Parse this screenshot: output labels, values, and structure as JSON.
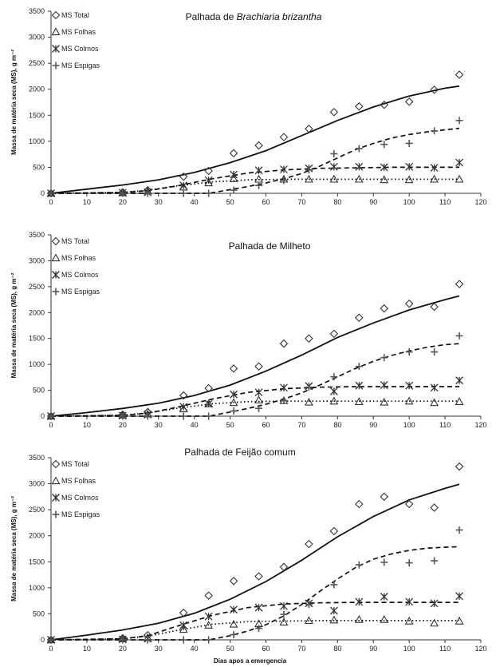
{
  "chart_data": [
    {
      "type": "scatter",
      "title_prefix": "Palhada de ",
      "title_emph": "Brachiaria brizantha",
      "ylabel": "Massa de matéria seca (MS), g m⁻²",
      "xlabel": "",
      "xlim": [
        0,
        120
      ],
      "ylim": [
        0,
        3500
      ],
      "xticks": [
        0,
        10,
        20,
        30,
        40,
        50,
        60,
        70,
        80,
        90,
        100,
        110,
        120
      ],
      "yticks": [
        0,
        500,
        1000,
        1500,
        2000,
        2500,
        3000,
        3500
      ],
      "legend": [
        "MS Total",
        "MS Folhas",
        "MS Colmos",
        "MS Espigas"
      ],
      "series": [
        {
          "name": "MS Total",
          "marker": "diamond",
          "x": [
            0,
            20,
            27,
            37,
            44,
            51,
            58,
            65,
            72,
            79,
            86,
            93,
            100,
            107,
            114
          ],
          "y": [
            0,
            20,
            60,
            320,
            430,
            770,
            920,
            1080,
            1240,
            1560,
            1670,
            1700,
            1760,
            1990,
            2280
          ]
        },
        {
          "name": "MS Folhas",
          "marker": "triangle",
          "x": [
            0,
            20,
            27,
            37,
            44,
            51,
            58,
            65,
            72,
            79,
            86,
            93,
            100,
            107,
            114
          ],
          "y": [
            0,
            10,
            40,
            120,
            200,
            280,
            270,
            270,
            270,
            270,
            270,
            260,
            260,
            270,
            270
          ]
        },
        {
          "name": "MS Colmos",
          "marker": "asterisk",
          "x": [
            0,
            20,
            27,
            37,
            44,
            51,
            58,
            65,
            72,
            79,
            86,
            93,
            100,
            107,
            114
          ],
          "y": [
            0,
            10,
            20,
            150,
            250,
            360,
            440,
            460,
            480,
            510,
            510,
            500,
            510,
            490,
            590
          ]
        },
        {
          "name": "MS Espigas",
          "marker": "plus",
          "x": [
            0,
            20,
            27,
            37,
            44,
            51,
            58,
            65,
            72,
            79,
            86,
            93,
            100,
            107,
            114
          ],
          "y": [
            0,
            0,
            0,
            0,
            0,
            60,
            150,
            250,
            450,
            760,
            860,
            940,
            960,
            1200,
            1400
          ]
        }
      ],
      "fits": [
        {
          "name": "MS Total",
          "style": "solid",
          "x": [
            0,
            10,
            20,
            30,
            40,
            50,
            60,
            70,
            80,
            90,
            100,
            110,
            114
          ],
          "y": [
            0,
            80,
            160,
            260,
            400,
            590,
            820,
            1110,
            1400,
            1660,
            1870,
            2020,
            2060
          ]
        },
        {
          "name": "MS Folhas",
          "style": "dotted",
          "x": [
            0,
            20,
            27,
            35,
            45,
            55,
            65,
            75,
            85,
            95,
            105,
            114
          ],
          "y": [
            0,
            20,
            60,
            140,
            220,
            260,
            270,
            270,
            270,
            270,
            270,
            270
          ]
        },
        {
          "name": "MS Colmos",
          "style": "dashed",
          "x": [
            0,
            20,
            27,
            35,
            45,
            55,
            65,
            75,
            85,
            95,
            105,
            114
          ],
          "y": [
            0,
            15,
            50,
            140,
            280,
            390,
            450,
            480,
            490,
            500,
            500,
            500
          ]
        },
        {
          "name": "MS Espigas",
          "style": "dashed",
          "x": [
            0,
            44,
            50,
            55,
            60,
            65,
            70,
            75,
            80,
            85,
            90,
            95,
            100,
            105,
            110,
            114
          ],
          "y": [
            0,
            0,
            70,
            130,
            200,
            280,
            380,
            520,
            680,
            840,
            960,
            1060,
            1130,
            1180,
            1220,
            1250
          ]
        }
      ]
    },
    {
      "type": "scatter",
      "title_prefix": "Palhada de Milheto",
      "title_emph": "",
      "ylabel": "Massa de matéria seca (MS), g m⁻²",
      "xlabel": "",
      "xlim": [
        0,
        120
      ],
      "ylim": [
        0,
        3500
      ],
      "xticks": [
        0,
        10,
        20,
        30,
        40,
        50,
        60,
        70,
        80,
        90,
        100,
        110,
        120
      ],
      "yticks": [
        0,
        500,
        1000,
        1500,
        2000,
        2500,
        3000,
        3500
      ],
      "legend": [
        "MS Total",
        "MS Folhas",
        "MS Colmos",
        "MS Espigas"
      ],
      "series": [
        {
          "name": "MS Total",
          "marker": "diamond",
          "x": [
            0,
            20,
            27,
            37,
            44,
            51,
            58,
            65,
            72,
            79,
            86,
            93,
            100,
            107,
            114
          ],
          "y": [
            0,
            30,
            80,
            400,
            540,
            920,
            960,
            1400,
            1500,
            1590,
            1900,
            2080,
            2170,
            2110,
            2550
          ]
        },
        {
          "name": "MS Folhas",
          "marker": "triangle",
          "x": [
            0,
            20,
            27,
            37,
            44,
            51,
            58,
            65,
            72,
            79,
            86,
            93,
            100,
            107,
            114
          ],
          "y": [
            0,
            20,
            40,
            140,
            240,
            260,
            310,
            300,
            270,
            290,
            280,
            270,
            290,
            260,
            280
          ]
        },
        {
          "name": "MS Colmos",
          "marker": "asterisk",
          "x": [
            0,
            20,
            27,
            37,
            44,
            51,
            58,
            65,
            72,
            79,
            86,
            93,
            100,
            107,
            114
          ],
          "y": [
            0,
            10,
            30,
            180,
            240,
            420,
            460,
            550,
            580,
            480,
            590,
            600,
            590,
            550,
            690
          ]
        },
        {
          "name": "MS Espigas",
          "marker": "plus",
          "x": [
            0,
            20,
            27,
            37,
            44,
            51,
            58,
            65,
            72,
            79,
            86,
            93,
            100,
            107,
            114
          ],
          "y": [
            0,
            0,
            0,
            0,
            0,
            100,
            150,
            300,
            560,
            760,
            960,
            1130,
            1240,
            1240,
            1550
          ]
        }
      ],
      "fits": [
        {
          "name": "MS Total",
          "style": "solid",
          "x": [
            0,
            10,
            20,
            30,
            40,
            50,
            60,
            70,
            80,
            90,
            100,
            110,
            114
          ],
          "y": [
            0,
            70,
            150,
            250,
            400,
            600,
            870,
            1180,
            1520,
            1800,
            2050,
            2250,
            2320
          ]
        },
        {
          "name": "MS Folhas",
          "style": "dotted",
          "x": [
            0,
            20,
            27,
            35,
            45,
            55,
            65,
            75,
            85,
            95,
            105,
            114
          ],
          "y": [
            0,
            20,
            60,
            150,
            240,
            280,
            290,
            290,
            290,
            290,
            290,
            290
          ]
        },
        {
          "name": "MS Colmos",
          "style": "dashed",
          "x": [
            0,
            20,
            27,
            35,
            45,
            55,
            65,
            75,
            85,
            95,
            105,
            114
          ],
          "y": [
            0,
            15,
            60,
            170,
            330,
            460,
            530,
            560,
            570,
            570,
            570,
            570
          ]
        },
        {
          "name": "MS Espigas",
          "style": "dashed",
          "x": [
            0,
            44,
            50,
            55,
            60,
            65,
            70,
            75,
            80,
            85,
            90,
            95,
            100,
            105,
            110,
            114
          ],
          "y": [
            0,
            0,
            80,
            150,
            230,
            330,
            450,
            600,
            760,
            920,
            1060,
            1170,
            1260,
            1330,
            1380,
            1400
          ]
        }
      ]
    },
    {
      "type": "scatter",
      "title_prefix": "Palhada de Feijão comum",
      "title_emph": "",
      "ylabel": "Massa de matéria seca (MS), g m⁻²",
      "xlabel": "Dias apos a emergencia",
      "xlim": [
        0,
        120
      ],
      "ylim": [
        0,
        3500
      ],
      "xticks": [
        0,
        10,
        20,
        30,
        40,
        50,
        60,
        70,
        80,
        90,
        100,
        110,
        120
      ],
      "yticks": [
        0,
        500,
        1000,
        1500,
        2000,
        2500,
        3000,
        3500
      ],
      "legend": [
        "MS Total",
        "MS Folhas",
        "MS Colmos",
        "MS Espigas"
      ],
      "series": [
        {
          "name": "MS Total",
          "marker": "diamond",
          "x": [
            0,
            20,
            27,
            37,
            44,
            51,
            58,
            65,
            72,
            79,
            86,
            93,
            100,
            107,
            114
          ],
          "y": [
            0,
            30,
            90,
            520,
            850,
            1130,
            1220,
            1400,
            1840,
            2090,
            2610,
            2750,
            2610,
            2540,
            3330
          ]
        },
        {
          "name": "MS Folhas",
          "marker": "triangle",
          "x": [
            0,
            20,
            27,
            37,
            44,
            51,
            58,
            65,
            72,
            79,
            86,
            93,
            100,
            107,
            114
          ],
          "y": [
            0,
            20,
            40,
            200,
            280,
            300,
            310,
            340,
            370,
            380,
            390,
            390,
            360,
            320,
            360
          ]
        },
        {
          "name": "MS Colmos",
          "marker": "asterisk",
          "x": [
            0,
            20,
            27,
            37,
            44,
            51,
            58,
            65,
            72,
            79,
            86,
            93,
            100,
            107,
            114
          ],
          "y": [
            0,
            10,
            20,
            280,
            450,
            580,
            620,
            650,
            700,
            560,
            730,
            830,
            730,
            700,
            840
          ]
        },
        {
          "name": "MS Espigas",
          "marker": "plus",
          "x": [
            0,
            20,
            27,
            37,
            44,
            51,
            58,
            65,
            72,
            79,
            86,
            93,
            100,
            107,
            114
          ],
          "y": [
            0,
            0,
            0,
            0,
            0,
            100,
            220,
            490,
            680,
            1060,
            1440,
            1490,
            1480,
            1520,
            2110
          ]
        }
      ],
      "fits": [
        {
          "name": "MS Total",
          "style": "solid",
          "x": [
            0,
            10,
            20,
            30,
            40,
            50,
            60,
            70,
            80,
            90,
            100,
            110,
            114
          ],
          "y": [
            0,
            90,
            190,
            320,
            510,
            780,
            1120,
            1530,
            1980,
            2370,
            2690,
            2910,
            2990
          ]
        },
        {
          "name": "MS Folhas",
          "style": "dotted",
          "x": [
            0,
            20,
            27,
            35,
            45,
            55,
            65,
            75,
            85,
            95,
            105,
            114
          ],
          "y": [
            0,
            20,
            70,
            180,
            300,
            350,
            360,
            370,
            370,
            370,
            370,
            370
          ]
        },
        {
          "name": "MS Colmos",
          "style": "dashed",
          "x": [
            0,
            20,
            27,
            35,
            45,
            55,
            65,
            75,
            85,
            95,
            105,
            114
          ],
          "y": [
            0,
            20,
            80,
            260,
            470,
            620,
            690,
            710,
            720,
            720,
            720,
            720
          ]
        },
        {
          "name": "MS Espigas",
          "style": "dashed",
          "x": [
            0,
            44,
            50,
            55,
            60,
            65,
            70,
            75,
            80,
            85,
            90,
            95,
            100,
            105,
            110,
            114
          ],
          "y": [
            0,
            0,
            80,
            170,
            290,
            460,
            680,
            930,
            1170,
            1390,
            1550,
            1650,
            1720,
            1760,
            1780,
            1790
          ]
        }
      ]
    }
  ]
}
